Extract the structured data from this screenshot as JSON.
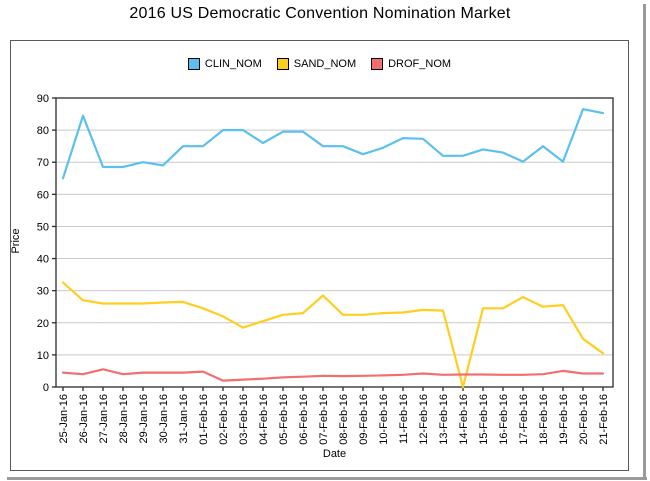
{
  "chart_data": {
    "type": "line",
    "title": "2016 US Democratic Convention Nomination Market",
    "xlabel": "Date",
    "ylabel": "Price",
    "ylim": [
      0,
      90
    ],
    "ytick_step": 10,
    "grid": true,
    "legend_position": "top-center",
    "categories": [
      "25-Jan-16",
      "26-Jan-16",
      "27-Jan-16",
      "28-Jan-16",
      "29-Jan-16",
      "30-Jan-16",
      "31-Jan-16",
      "01-Feb-16",
      "02-Feb-16",
      "03-Feb-16",
      "04-Feb-16",
      "05-Feb-16",
      "06-Feb-16",
      "07-Feb-16",
      "08-Feb-16",
      "09-Feb-16",
      "10-Feb-16",
      "11-Feb-16",
      "12-Feb-16",
      "13-Feb-16",
      "14-Feb-16",
      "15-Feb-16",
      "16-Feb-16",
      "17-Feb-16",
      "18-Feb-16",
      "19-Feb-16",
      "20-Feb-16",
      "21-Feb-16"
    ],
    "series": [
      {
        "name": "CLIN_NOM",
        "color": "#5bc0f0",
        "values": [
          65,
          84.5,
          68.5,
          68.5,
          70,
          69,
          75,
          75,
          80,
          80,
          76,
          79.5,
          79.5,
          75,
          75,
          72.5,
          74.5,
          77.5,
          77.3,
          72,
          72,
          74,
          73,
          70.2,
          75,
          70.2,
          86.5,
          85.3
        ]
      },
      {
        "name": "SAND_NOM",
        "color": "#ffce21",
        "values": [
          32.5,
          27,
          26,
          26,
          26,
          26.3,
          26.5,
          24.5,
          22,
          18.5,
          20.5,
          22.5,
          23,
          28.5,
          22.5,
          22.5,
          23,
          23.2,
          24,
          23.8,
          0,
          24.5,
          24.5,
          28,
          25,
          25.5,
          15,
          10.5
        ]
      },
      {
        "name": "DROF_NOM",
        "color": "#f26f6f",
        "values": [
          4.5,
          4,
          5.5,
          4,
          4.5,
          4.5,
          4.5,
          4.8,
          2,
          2.3,
          2.6,
          3,
          3.2,
          3.5,
          3.4,
          3.5,
          3.6,
          3.8,
          4.2,
          3.8,
          3.9,
          3.9,
          3.8,
          3.8,
          4,
          5,
          4.2,
          4.2
        ]
      }
    ]
  },
  "colors": {
    "grid": "#c9c9c9",
    "axis": "#2b2b2b",
    "frame_border": "#595959",
    "shadow": "#9a9a9a",
    "tick_text": "#000000"
  }
}
